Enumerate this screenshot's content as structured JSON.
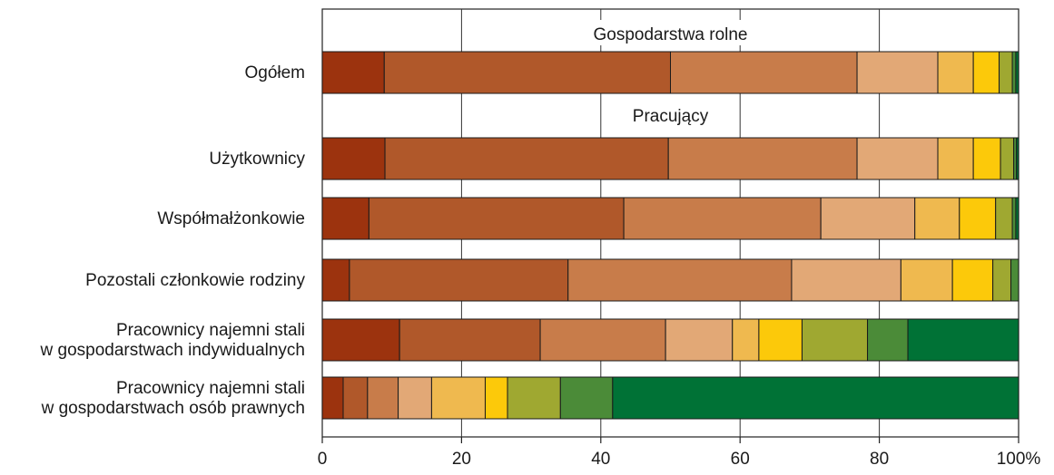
{
  "chart_data": {
    "type": "bar",
    "stacked": true,
    "orientation": "horizontal",
    "percent_scale": true,
    "xlim": [
      0,
      100
    ],
    "xticks": [
      "0",
      "20",
      "40",
      "60",
      "80",
      "100%"
    ],
    "grid": true,
    "segment_colors": [
      "#9c330e",
      "#b0582a",
      "#c87c4a",
      "#e2a876",
      "#efb94f",
      "#fcc90a",
      "#9fa831",
      "#4b8b38",
      "#007236"
    ],
    "sections": [
      {
        "title": "Gospodarstwa rolne",
        "rows": [
          {
            "label": [
              "Ogółem"
            ],
            "values": [
              8.9,
              41.1,
              26.8,
              11.6,
              5.1,
              3.7,
              1.9,
              0.5,
              0.4
            ]
          }
        ]
      },
      {
        "title": "Pracujący",
        "rows": [
          {
            "label": [
              "Użytkownicy"
            ],
            "values": [
              9.0,
              40.7,
              27.1,
              11.6,
              5.1,
              3.9,
              1.9,
              0.4,
              0.3
            ]
          },
          {
            "label": [
              "Współmałżonkowie"
            ],
            "values": [
              6.7,
              36.6,
              28.3,
              13.5,
              6.4,
              5.2,
              2.4,
              0.5,
              0.4
            ]
          },
          {
            "label": [
              "Pozostali członkowie rodziny"
            ],
            "values": [
              3.9,
              31.4,
              32.1,
              15.7,
              7.4,
              5.8,
              2.6,
              1.1,
              0.0
            ]
          },
          {
            "label": [
              "Pracownicy najemni stali",
              "w gospodarstwach indywidualnych"
            ],
            "values": [
              11.1,
              20.2,
              18.0,
              9.6,
              3.8,
              6.2,
              9.4,
              5.8,
              15.9
            ]
          },
          {
            "label": [
              "Pracownicy najemni stali",
              "w gospodarstwach osób prawnych"
            ],
            "values": [
              3.0,
              3.5,
              4.4,
              4.8,
              7.7,
              3.2,
              7.6,
              7.5,
              58.3
            ]
          }
        ]
      }
    ]
  }
}
